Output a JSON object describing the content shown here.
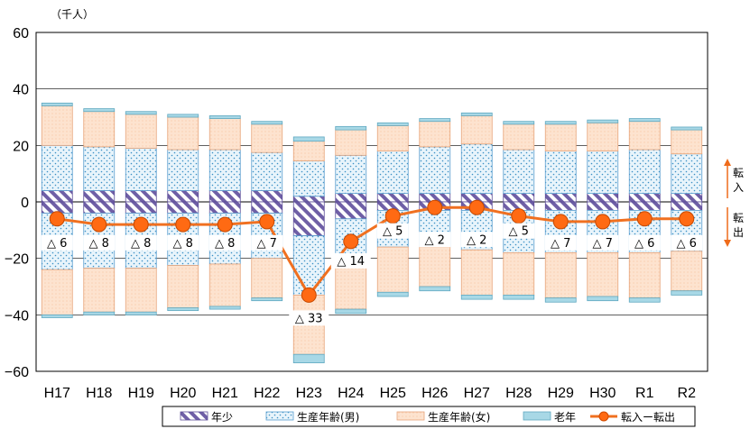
{
  "chart_data": {
    "type": "bar",
    "unit_label": "（千人）",
    "categories": [
      "H17",
      "H18",
      "H19",
      "H20",
      "H21",
      "H22",
      "H23",
      "H24",
      "H25",
      "H26",
      "H27",
      "H28",
      "H29",
      "H30",
      "R1",
      "R2"
    ],
    "ylim": [
      -60,
      60
    ],
    "yticks": [
      "60",
      "40",
      "20",
      "0",
      "−20",
      "−40",
      "−60"
    ],
    "series": [
      {
        "name": "年少",
        "pos": [
          4,
          4,
          4,
          4,
          4,
          4,
          2,
          3,
          3,
          3,
          3,
          3,
          3,
          3,
          3,
          3
        ],
        "neg": [
          -4,
          -4,
          -4,
          -4,
          -4,
          -4,
          -12,
          -6,
          -3,
          -3,
          -3,
          -3,
          -3,
          -3,
          -3,
          -3
        ]
      },
      {
        "name": "生産年齢(男)",
        "pos": [
          16,
          15.5,
          15,
          14.5,
          14.5,
          13.5,
          12.5,
          13.5,
          15,
          16.5,
          17.5,
          15.5,
          15,
          15,
          15.5,
          14
        ],
        "neg": [
          -20,
          -19.5,
          -19.5,
          -18.5,
          -18,
          -16,
          -21,
          -17,
          -13,
          -13,
          -14,
          -15,
          -15,
          -15,
          -15,
          -14.5
        ]
      },
      {
        "name": "生産年齢(女)",
        "pos": [
          14,
          12.5,
          12,
          11.5,
          11,
          10,
          7,
          9,
          9,
          9,
          10,
          9,
          9.5,
          10,
          10,
          8.5
        ],
        "neg": [
          -16,
          -15.5,
          -15.5,
          -15,
          -15,
          -14,
          -21,
          -15,
          -16,
          -14,
          -16,
          -15,
          -16,
          -15.5,
          -16,
          -14
        ]
      },
      {
        "name": "老年",
        "pos": [
          1,
          1,
          1,
          1,
          1,
          1,
          1.5,
          1.2,
          1,
          1,
          1,
          1,
          1,
          1,
          1,
          1
        ],
        "neg": [
          -1,
          -1,
          -1,
          -1,
          -1,
          -1,
          -3,
          -1.5,
          -1.5,
          -1.5,
          -1.5,
          -1.5,
          -1.5,
          -1.5,
          -1.5,
          -1.5
        ]
      }
    ],
    "net": [
      -6,
      -8,
      -8,
      -8,
      -8,
      -7,
      -33,
      -14,
      -5,
      -2,
      -2,
      -5,
      -7,
      -7,
      -6,
      -6
    ],
    "net_labels": [
      "△ 6",
      "△ 8",
      "△ 8",
      "△ 8",
      "△ 8",
      "△ 7",
      "△ 33",
      "△ 14",
      "△ 5",
      "△ 2",
      "△ 2",
      "△ 5",
      "△ 7",
      "△ 7",
      "△ 6",
      "△ 6"
    ],
    "line_series_name": "転入ー転出",
    "side_labels": {
      "upper": "転\n入",
      "lower": "転\n出"
    },
    "legend_placement": "bottom",
    "grid": true,
    "colors": {
      "young": "#7f6fae",
      "working_male": "#ddeef8",
      "working_female": "#fcd9c0",
      "elderly": "#a8d8e6",
      "line": "#f07020",
      "marker_fill": "#ff6a13"
    }
  }
}
